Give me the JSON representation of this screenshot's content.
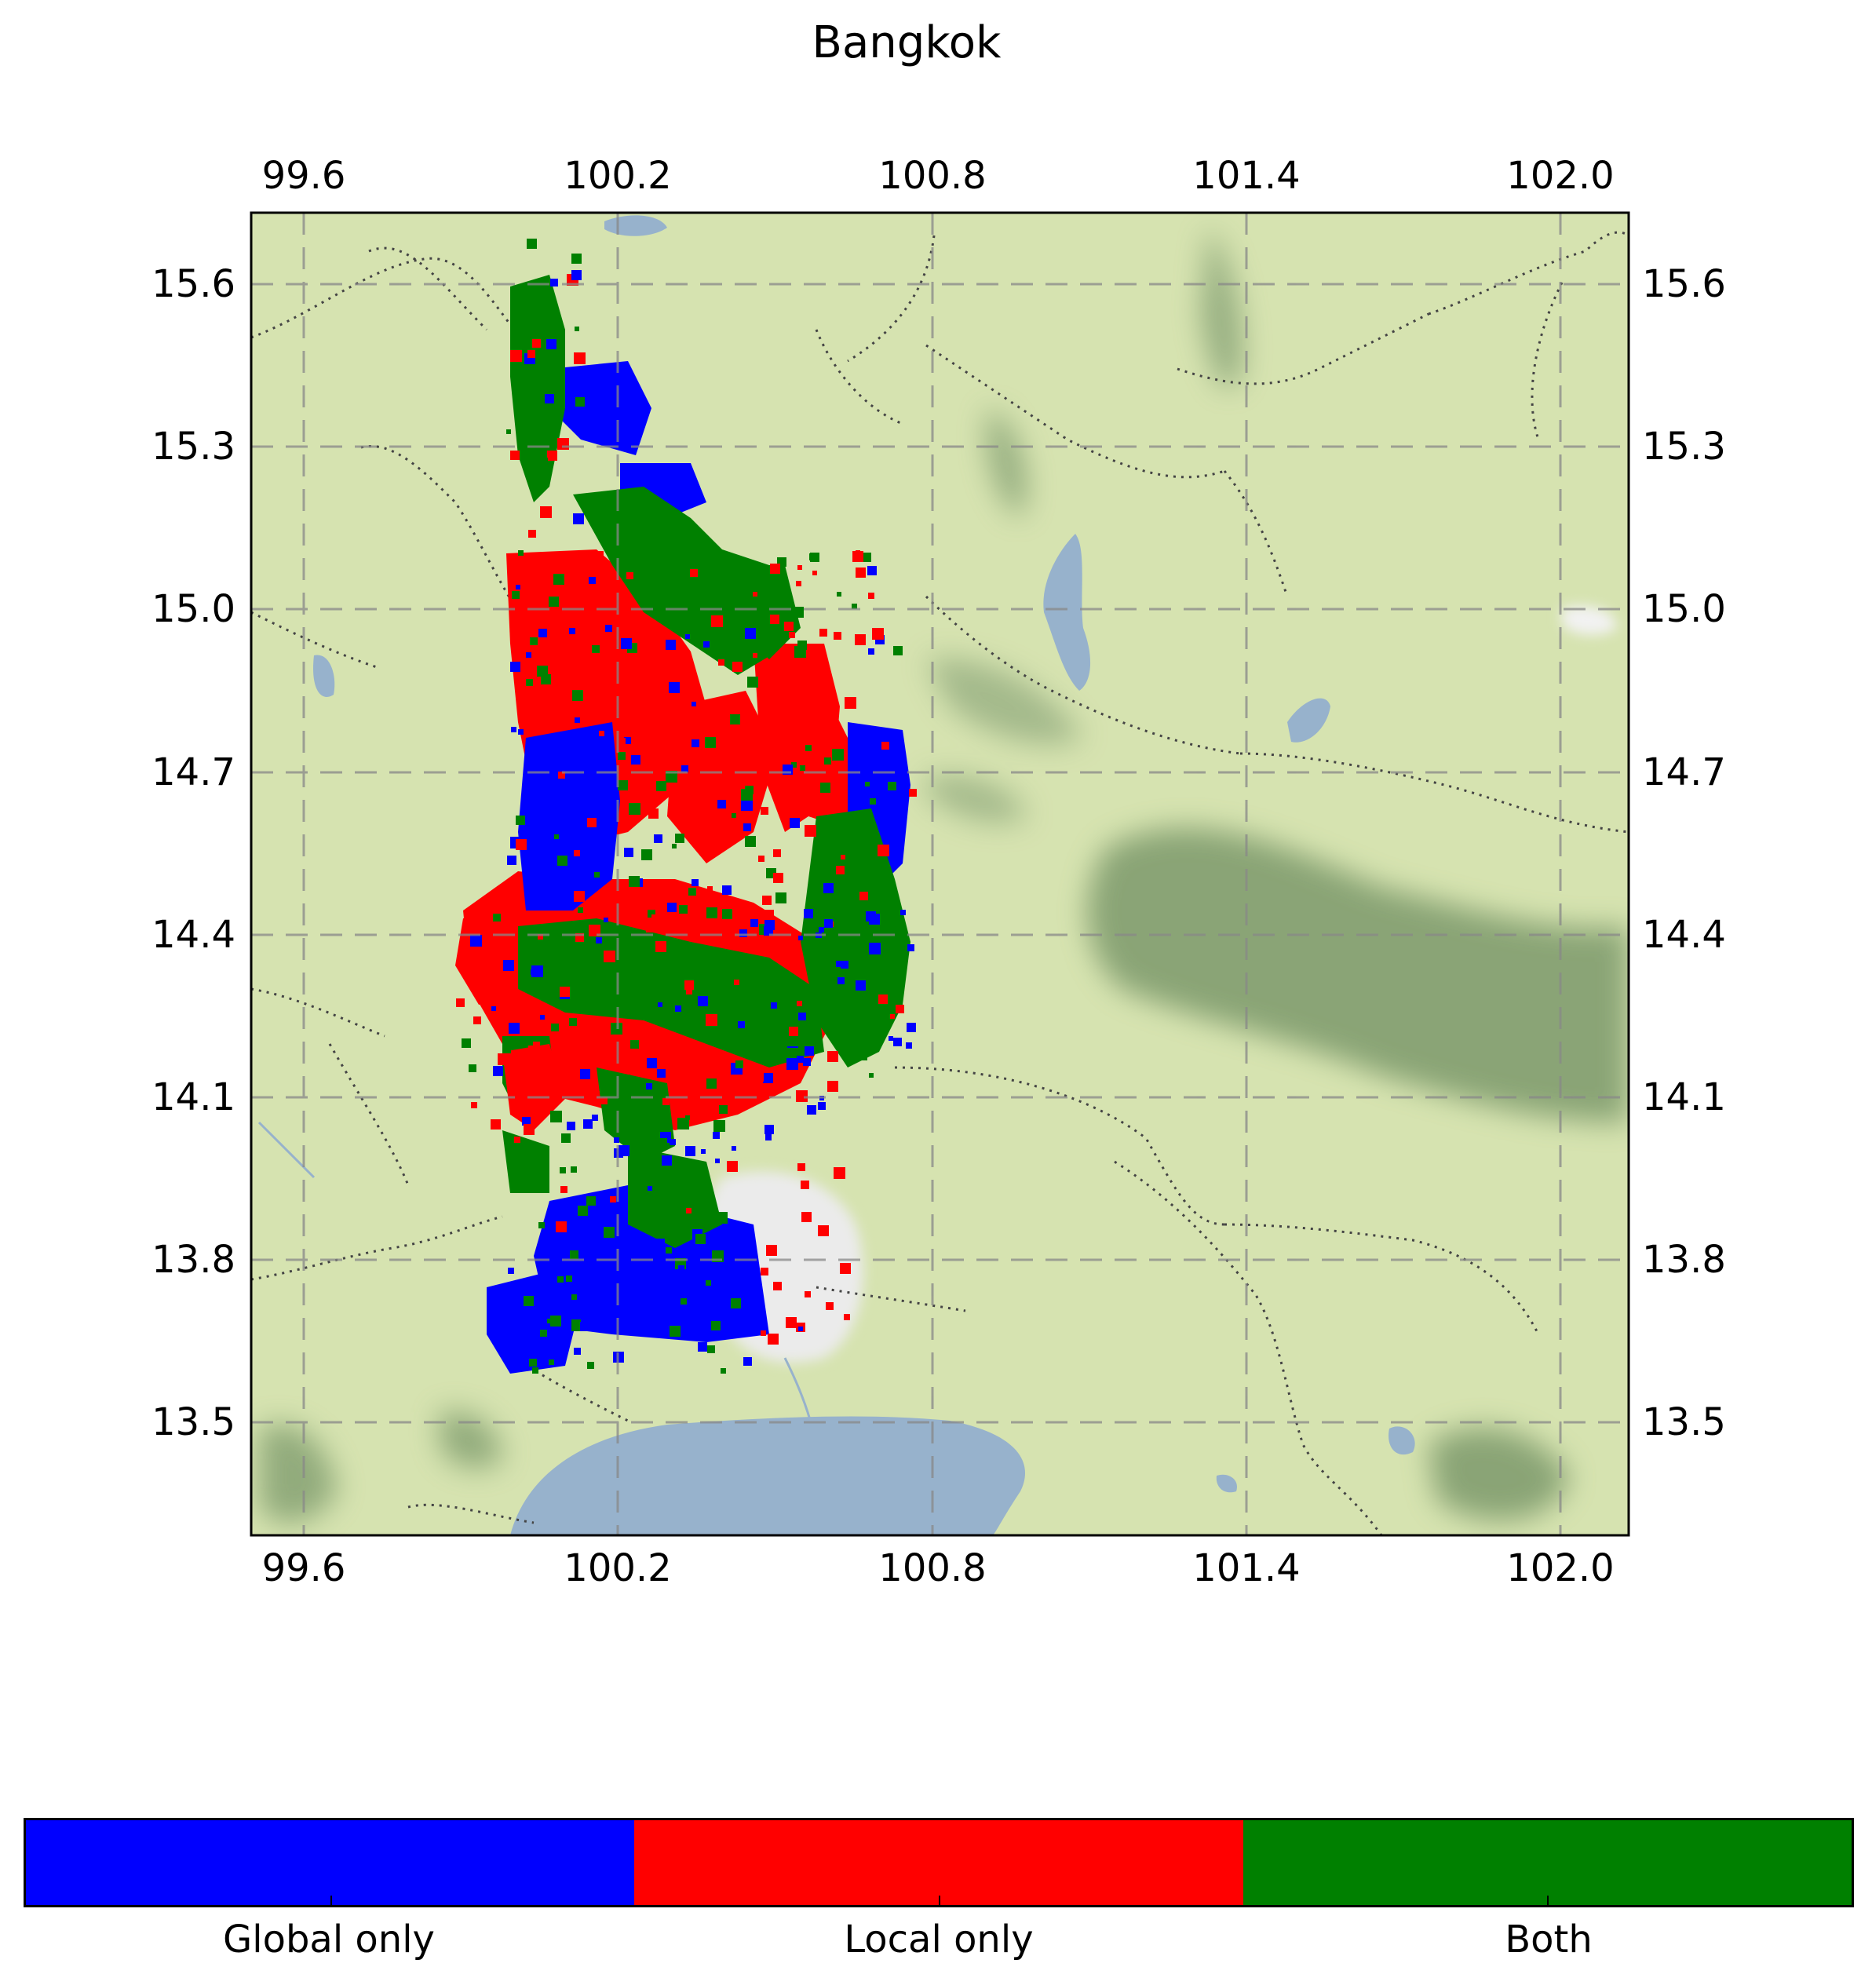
{
  "title": "Bangkok",
  "map": {
    "x_ticks": [
      "99.6",
      "100.2",
      "100.8",
      "101.4",
      "102.0"
    ],
    "y_ticks": [
      "15.6",
      "15.3",
      "15.0",
      "14.7",
      "14.4",
      "14.1",
      "13.8",
      "13.5"
    ],
    "x_range": [
      99.5,
      102.13
    ],
    "y_range": [
      13.29,
      15.73
    ],
    "grid": true,
    "basemap_colors": {
      "land": "#d6e3b0",
      "water": "#97b2cc",
      "hills": "#7a9668",
      "urban": "#ebebeb"
    }
  },
  "legend": {
    "categories": [
      {
        "label": "Global only",
        "color": "#0000ff"
      },
      {
        "label": "Local only",
        "color": "#ff0000"
      },
      {
        "label": "Both",
        "color": "#008000"
      }
    ]
  }
}
